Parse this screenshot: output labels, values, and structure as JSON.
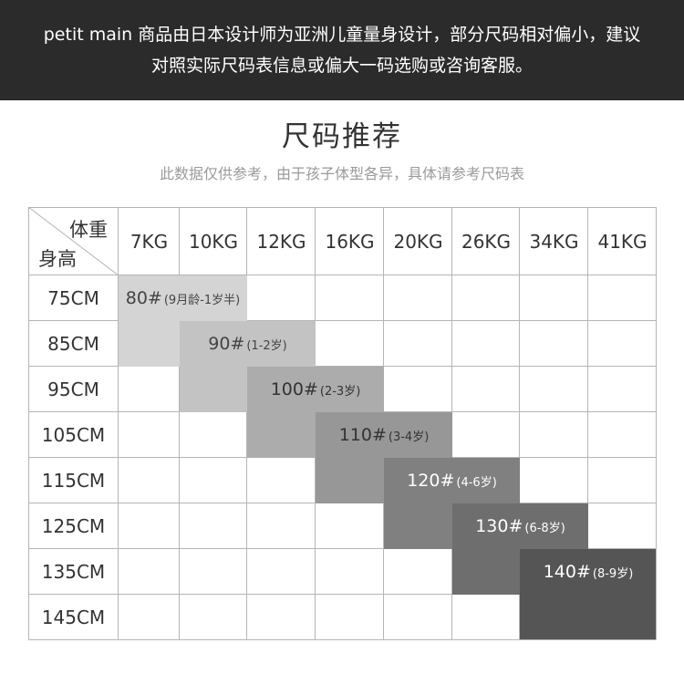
{
  "banner": {
    "line1": "petit main 商品由日本设计师为亚洲儿童量身设计，部分尺码相对偏小，建议",
    "line2": "对照实际尺码表信息或偏大一码选购或咨询客服。"
  },
  "title": "尺码推荐",
  "subtitle": "此数据仅供参考，由于孩子体型各异，具体请参考尺码表",
  "table": {
    "corner_weight": "体重",
    "corner_height": "身高",
    "weights": [
      "7KG",
      "10KG",
      "12KG",
      "16KG",
      "20KG",
      "26KG",
      "34KG",
      "41KG"
    ],
    "heights": [
      "75CM",
      "85CM",
      "95CM",
      "105CM",
      "115CM",
      "125CM",
      "135CM",
      "145CM"
    ],
    "sizes": [
      {
        "size": "80#",
        "age": "(9月龄-1岁半)",
        "color": "#d4d4d4",
        "text_color": "#444444"
      },
      {
        "size": "90#",
        "age": "(1-2岁)",
        "color": "#c3c3c3",
        "text_color": "#444444"
      },
      {
        "size": "100#",
        "age": "(2-3岁)",
        "color": "#acacac",
        "text_color": "#333333"
      },
      {
        "size": "110#",
        "age": "(3-4岁)",
        "color": "#979797",
        "text_color": "#333333"
      },
      {
        "size": "120#",
        "age": "(4-6岁)",
        "color": "#808080",
        "text_color": "#ffffff"
      },
      {
        "size": "130#",
        "age": "(6-8岁)",
        "color": "#6e6e6e",
        "text_color": "#ffffff"
      },
      {
        "size": "140#",
        "age": "(8-9岁)",
        "color": "#555555",
        "text_color": "#ffffff"
      }
    ]
  }
}
